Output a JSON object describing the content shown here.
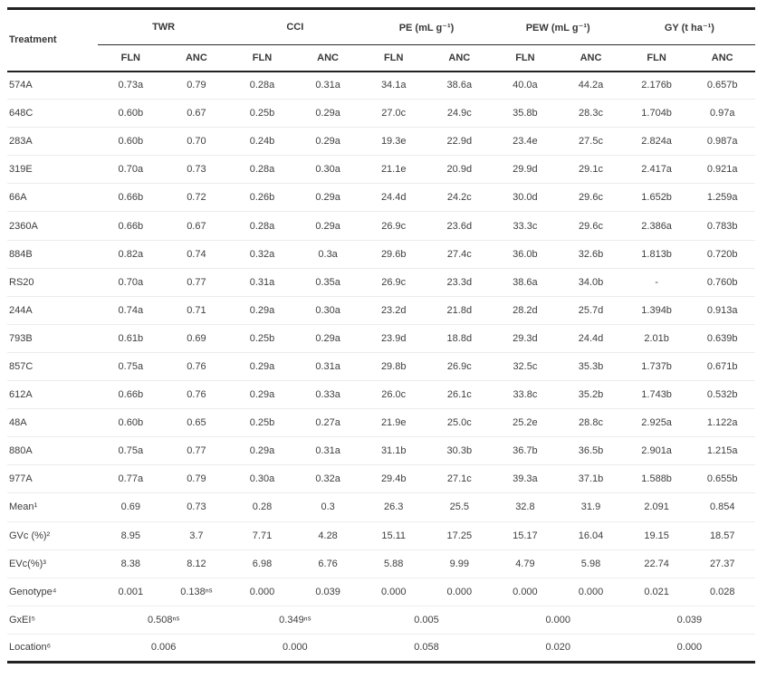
{
  "table": {
    "header": {
      "treatment": "Treatment",
      "groups": [
        {
          "label": "TWR",
          "sub": [
            "FLN",
            "ANC"
          ]
        },
        {
          "label": "CCI",
          "sub": [
            "FLN",
            "ANC"
          ]
        },
        {
          "label": "PE (mL g⁻¹)",
          "sub": [
            "FLN",
            "ANC"
          ]
        },
        {
          "label": "PEW (mL g⁻¹)",
          "sub": [
            "FLN",
            "ANC"
          ]
        },
        {
          "label": "GY (t ha⁻¹)",
          "sub": [
            "FLN",
            "ANC"
          ]
        }
      ]
    },
    "rows": [
      {
        "label": "574A",
        "values": [
          "0.73a",
          "0.79",
          "0.28a",
          "0.31a",
          "34.1a",
          "38.6a",
          "40.0a",
          "44.2a",
          "2.176b",
          "0.657b"
        ]
      },
      {
        "label": "648C",
        "values": [
          "0.60b",
          "0.67",
          "0.25b",
          "0.29a",
          "27.0c",
          "24.9c",
          "35.8b",
          "28.3c",
          "1.704b",
          "0.97a"
        ]
      },
      {
        "label": "283A",
        "values": [
          "0.60b",
          "0.70",
          "0.24b",
          "0.29a",
          "19.3e",
          "22.9d",
          "23.4e",
          "27.5c",
          "2.824a",
          "0.987a"
        ]
      },
      {
        "label": "319E",
        "values": [
          "0.70a",
          "0.73",
          "0.28a",
          "0.30a",
          "21.1e",
          "20.9d",
          "29.9d",
          "29.1c",
          "2.417a",
          "0.921a"
        ]
      },
      {
        "label": "66A",
        "values": [
          "0.66b",
          "0.72",
          "0.26b",
          "0.29a",
          "24.4d",
          "24.2c",
          "30.0d",
          "29.6c",
          "1.652b",
          "1.259a"
        ]
      },
      {
        "label": "2360A",
        "values": [
          "0.66b",
          "0.67",
          "0.28a",
          "0.29a",
          "26.9c",
          "23.6d",
          "33.3c",
          "29.6c",
          "2.386a",
          "0.783b"
        ]
      },
      {
        "label": "884B",
        "values": [
          "0.82a",
          "0.74",
          "0.32a",
          "0.3a",
          "29.6b",
          "27.4c",
          "36.0b",
          "32.6b",
          "1.813b",
          "0.720b"
        ]
      },
      {
        "label": "RS20",
        "values": [
          "0.70a",
          "0.77",
          "0.31a",
          "0.35a",
          "26.9c",
          "23.3d",
          "38.6a",
          "34.0b",
          "-",
          "0.760b"
        ]
      },
      {
        "label": "244A",
        "values": [
          "0.74a",
          "0.71",
          "0.29a",
          "0.30a",
          "23.2d",
          "21.8d",
          "28.2d",
          "25.7d",
          "1.394b",
          "0.913a"
        ]
      },
      {
        "label": "793B",
        "values": [
          "0.61b",
          "0.69",
          "0.25b",
          "0.29a",
          "23.9d",
          "18.8d",
          "29.3d",
          "24.4d",
          "2.01b",
          "0.639b"
        ]
      },
      {
        "label": "857C",
        "values": [
          "0.75a",
          "0.76",
          "0.29a",
          "0.31a",
          "29.8b",
          "26.9c",
          "32.5c",
          "35.3b",
          "1.737b",
          "0.671b"
        ]
      },
      {
        "label": "612A",
        "values": [
          "0.66b",
          "0.76",
          "0.29a",
          "0.33a",
          "26.0c",
          "26.1c",
          "33.8c",
          "35.2b",
          "1.743b",
          "0.532b"
        ]
      },
      {
        "label": "48A",
        "values": [
          "0.60b",
          "0.65",
          "0.25b",
          "0.27a",
          "21.9e",
          "25.0c",
          "25.2e",
          "28.8c",
          "2.925a",
          "1.122a"
        ]
      },
      {
        "label": "880A",
        "values": [
          "0.75a",
          "0.77",
          "0.29a",
          "0.31a",
          "31.1b",
          "30.3b",
          "36.7b",
          "36.5b",
          "2.901a",
          "1.215a"
        ]
      },
      {
        "label": "977A",
        "values": [
          "0.77a",
          "0.79",
          "0.30a",
          "0.32a",
          "29.4b",
          "27.1c",
          "39.3a",
          "37.1b",
          "1.588b",
          "0.655b"
        ]
      },
      {
        "label": "Mean¹",
        "values": [
          "0.69",
          "0.73",
          "0.28",
          "0.3",
          "26.3",
          "25.5",
          "32.8",
          "31.9",
          "2.091",
          "0.854"
        ]
      },
      {
        "label": "GVc (%)²",
        "values": [
          "8.95",
          "3.7",
          "7.71",
          "4.28",
          "15.11",
          "17.25",
          "15.17",
          "16.04",
          "19.15",
          "18.57"
        ]
      },
      {
        "label": "EVc(%)³",
        "values": [
          "8.38",
          "8.12",
          "6.98",
          "6.76",
          "5.88",
          "9.99",
          "4.79",
          "5.98",
          "22.74",
          "27.37"
        ]
      },
      {
        "label": "Genotype⁴",
        "values": [
          "0.001",
          "0.138ⁿˢ",
          "0.000",
          "0.039",
          "0.000",
          "0.000",
          "0.000",
          "0.000",
          "0.021",
          "0.028"
        ]
      },
      {
        "label": "GxEI⁵",
        "span": 2,
        "values": [
          "0.508ⁿˢ",
          "0.349ⁿˢ",
          "0.005",
          "0.000",
          "0.039"
        ]
      },
      {
        "label": "Location⁶",
        "span": 2,
        "values": [
          "0.006",
          "0.000",
          "0.058",
          "0.020",
          "0.000"
        ]
      }
    ]
  },
  "colors": {
    "text": "#3f3f3f",
    "border_strong": "#222222",
    "row_divider": "#ececec"
  }
}
